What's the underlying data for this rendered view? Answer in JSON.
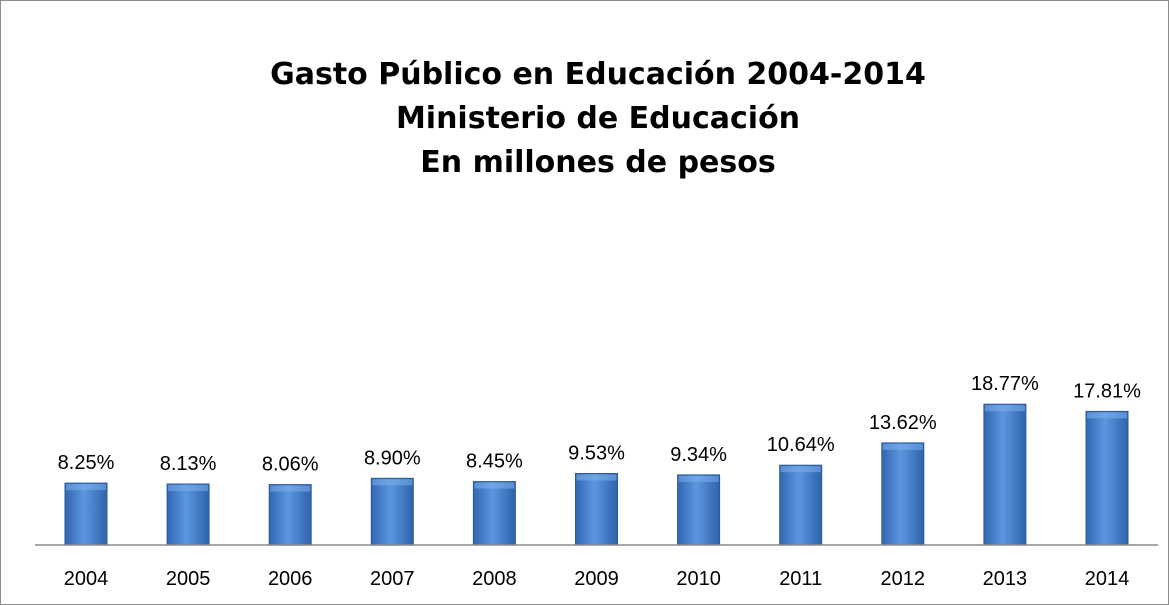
{
  "chart_data": {
    "type": "bar",
    "title_lines": [
      "Gasto Público en Educación 2004-2014",
      "Ministerio de Educación",
      "En millones de pesos"
    ],
    "xlabel": "",
    "ylabel": "",
    "categories": [
      "2004",
      "2005",
      "2006",
      "2007",
      "2008",
      "2009",
      "2010",
      "2011",
      "2012",
      "2013",
      "2014"
    ],
    "values": [
      8.25,
      8.13,
      8.06,
      8.9,
      8.45,
      9.53,
      9.34,
      10.64,
      13.62,
      18.77,
      17.81
    ],
    "data_labels": [
      "8.25%",
      "8.13%",
      "8.06%",
      "8.90%",
      "8.45%",
      "9.53%",
      "9.34%",
      "10.64%",
      "13.62%",
      "18.77%",
      "17.81%"
    ],
    "ylim": [
      0,
      20
    ],
    "y_axis_visible": false,
    "grid": false,
    "legend": "none",
    "bar_color": "#4a84cf",
    "bar_edge_color": "#2a5a99"
  }
}
